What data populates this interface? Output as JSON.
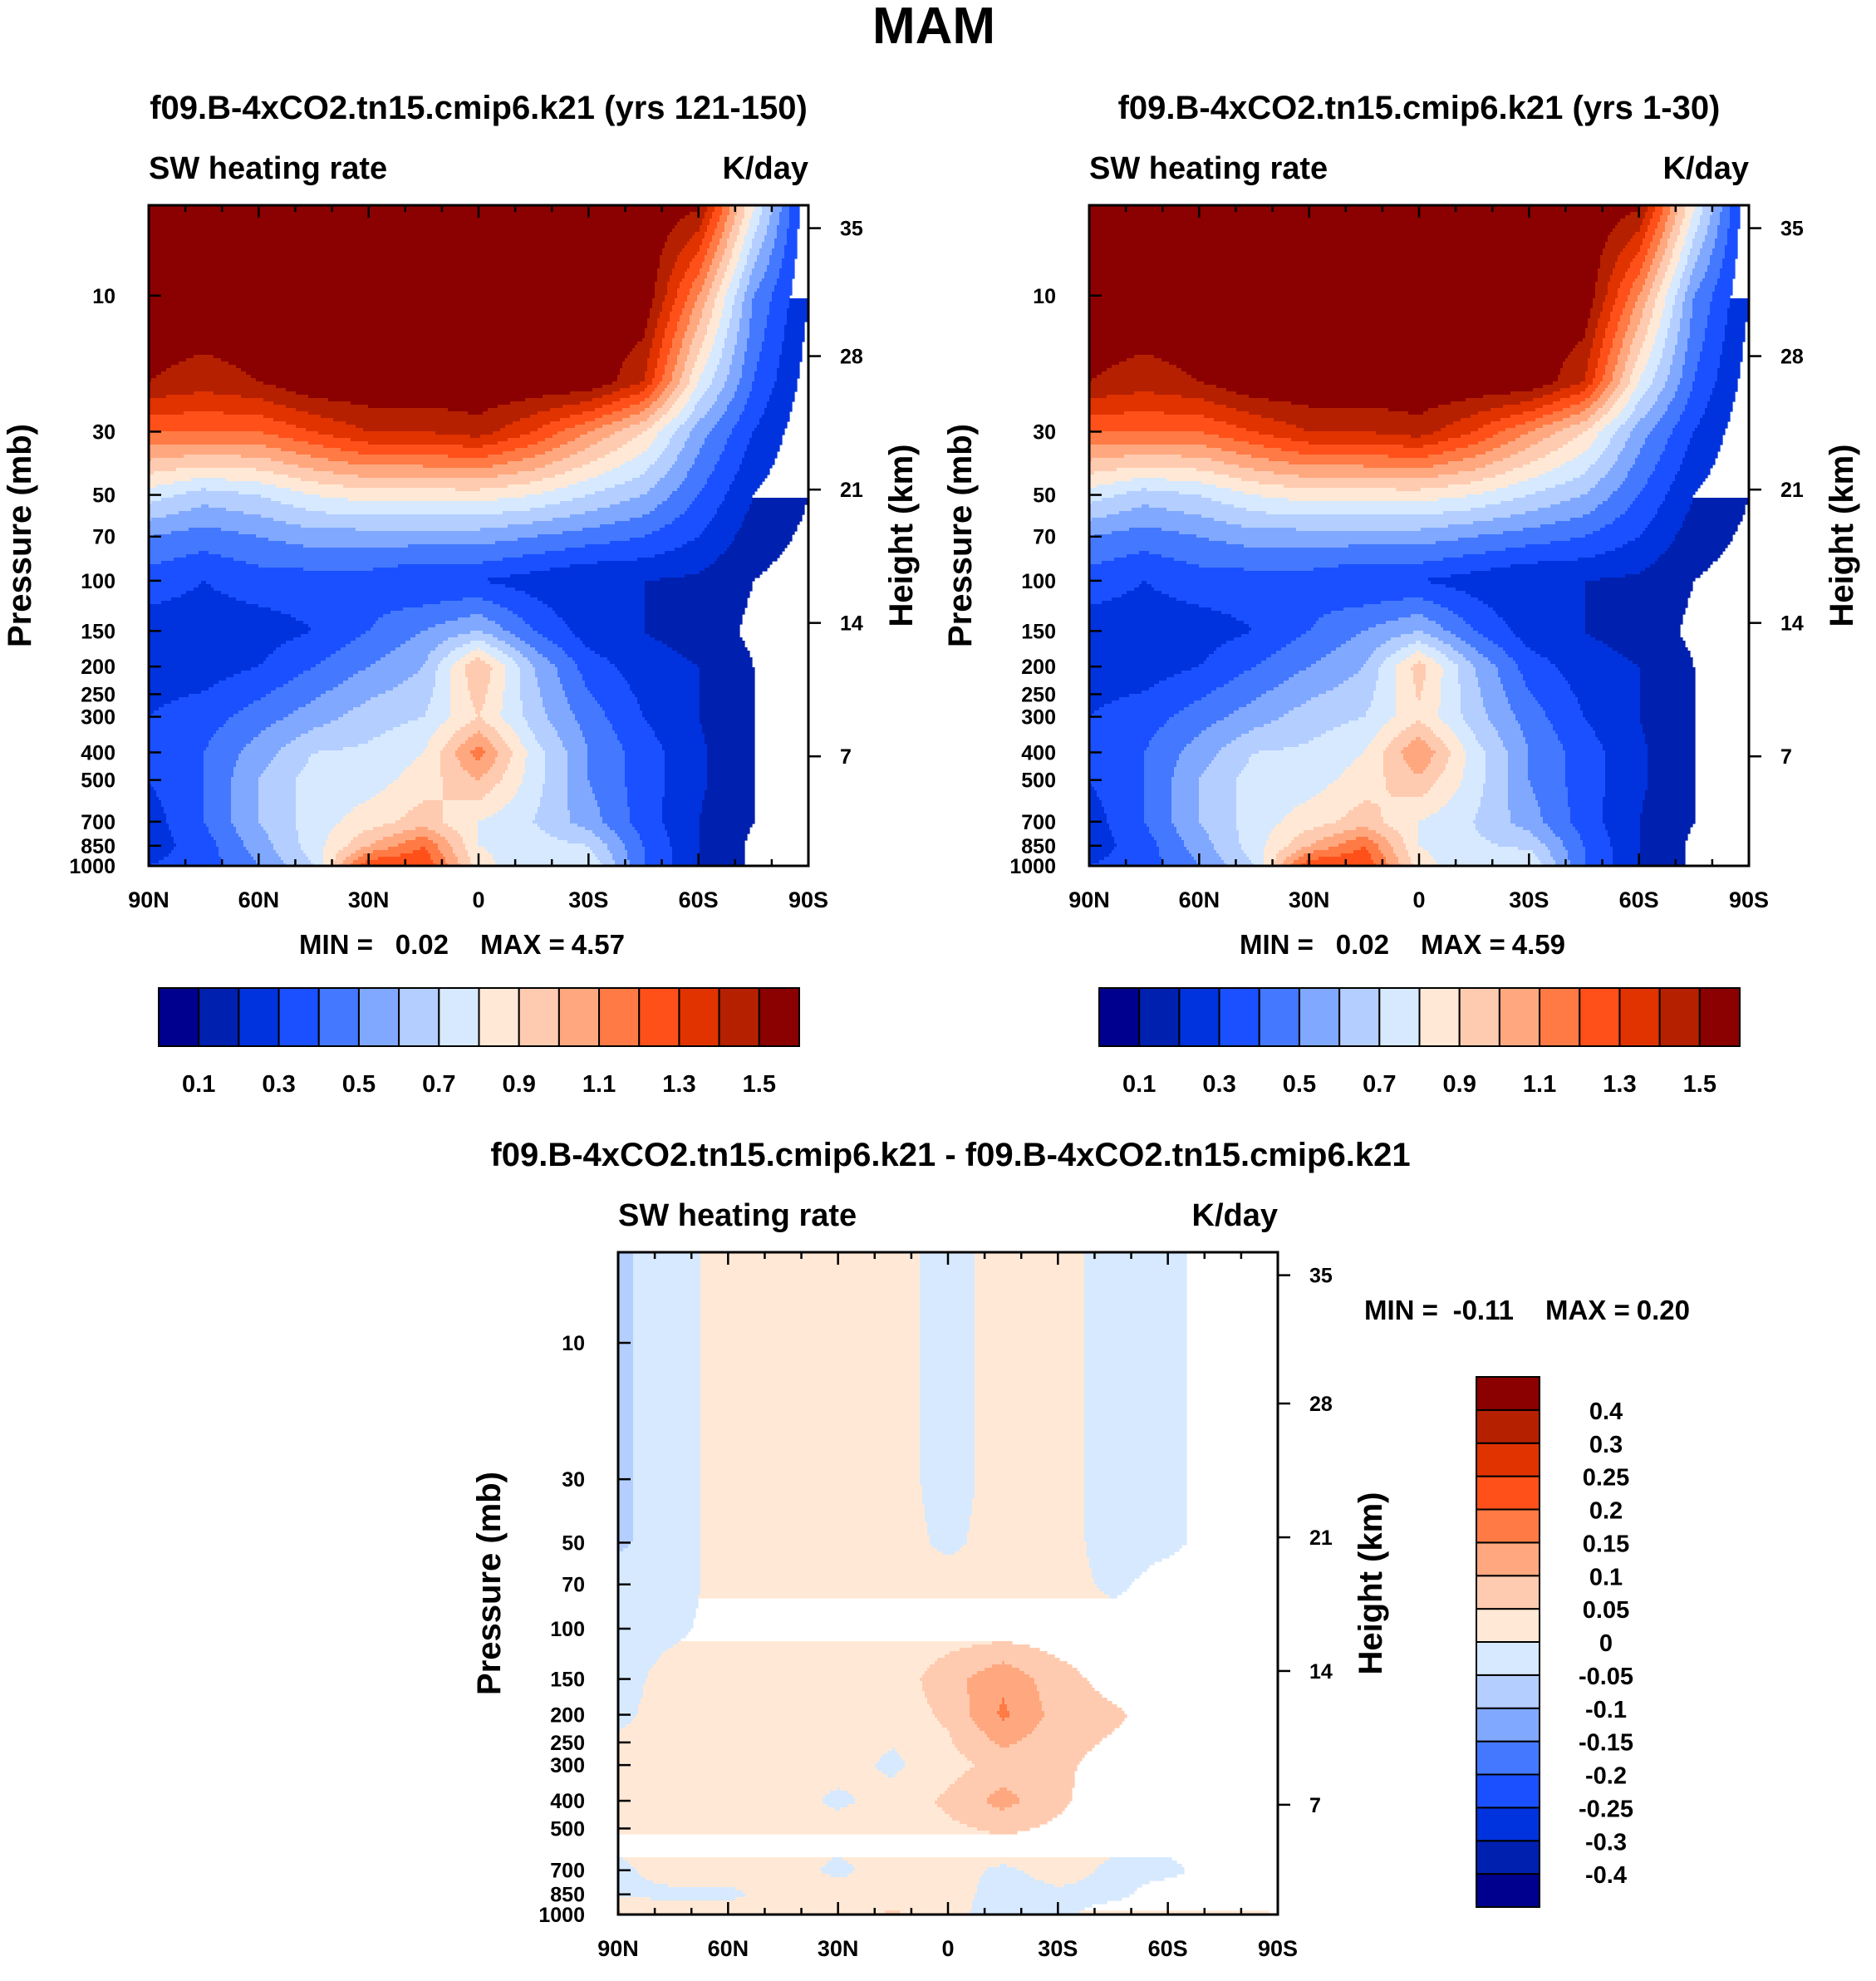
{
  "figure_title": "MAM",
  "colors_main": [
    "#00008f",
    "#0020b0",
    "#0033dd",
    "#1a50ff",
    "#4478ff",
    "#80a8ff",
    "#b4ceff",
    "#d6e9ff",
    "#ffe9d6",
    "#ffcbb0",
    "#ffa880",
    "#ff7a44",
    "#ff501a",
    "#e03300",
    "#b52000",
    "#8b0000"
  ],
  "chart_data": [
    {
      "type": "heatmap",
      "title": "f09.B-4xCO2.tn15.cmip6.k21 (yrs 121-150)",
      "left_label": "SW heating rate",
      "right_label": "K/day",
      "ylabel": "Pressure (mb)",
      "ylabel_right": "Height (km)",
      "stats": {
        "min_label": "MIN =",
        "min": "0.02",
        "max_label": "MAX =",
        "max": "4.57"
      },
      "ylim": [
        1000,
        4.82
      ],
      "xlim": [
        90,
        -90
      ],
      "x_ticks": [
        {
          "v": 90,
          "label": "90N"
        },
        {
          "v": 60,
          "label": "60N"
        },
        {
          "v": 30,
          "label": "30N"
        },
        {
          "v": 0,
          "label": "0"
        },
        {
          "v": -30,
          "label": "30S"
        },
        {
          "v": -60,
          "label": "60S"
        },
        {
          "v": -90,
          "label": "90S"
        }
      ],
      "y_ticks": [
        "10",
        "30",
        "50",
        "70",
        "100",
        "150",
        "200",
        "250",
        "300",
        "400",
        "500",
        "700",
        "850",
        "1000"
      ],
      "height_ticks": [
        {
          "km": "35",
          "p_mb": 5.8
        },
        {
          "km": "28",
          "p_mb": 16.3
        },
        {
          "km": "21",
          "p_mb": 47.9
        },
        {
          "km": "14",
          "p_mb": 140.6
        },
        {
          "km": "7",
          "p_mb": 413
        }
      ],
      "levels": [
        0.1,
        0.2,
        0.3,
        0.4,
        0.5,
        0.6,
        0.7,
        0.8,
        0.9,
        1.0,
        1.1,
        1.2,
        1.3,
        1.4,
        1.5
      ],
      "colorbar_labels": [
        {
          "level_index": 0,
          "label": "0.1"
        },
        {
          "level_index": 2,
          "label": "0.3"
        },
        {
          "level_index": 4,
          "label": "0.5"
        },
        {
          "level_index": 6,
          "label": "0.7"
        },
        {
          "level_index": 8,
          "label": "0.9"
        },
        {
          "level_index": 10,
          "label": "1.1"
        },
        {
          "level_index": 12,
          "label": "1.3"
        },
        {
          "level_index": 14,
          "label": "1.5"
        }
      ],
      "lat": [
        90,
        75,
        60,
        45,
        30,
        15,
        0,
        -15,
        -30,
        -45,
        -60,
        -75,
        -90
      ],
      "p": [
        5,
        10,
        20,
        30,
        50,
        70,
        100,
        150,
        200,
        300,
        400,
        500,
        700,
        850,
        1000
      ],
      "values": [
        [
          1.6,
          1.6,
          1.6,
          1.6,
          1.6,
          1.6,
          1.6,
          1.6,
          1.6,
          1.6,
          1.5,
          0.8,
          0.2
        ],
        [
          1.6,
          1.6,
          1.6,
          1.6,
          1.6,
          1.6,
          1.6,
          1.6,
          1.6,
          1.6,
          1.1,
          0.5,
          0.2
        ],
        [
          1.5,
          1.45,
          1.5,
          1.6,
          1.6,
          1.6,
          1.6,
          1.6,
          1.6,
          1.4,
          0.8,
          0.4,
          0.15
        ],
        [
          1.2,
          1.2,
          1.2,
          1.3,
          1.4,
          1.4,
          1.45,
          1.3,
          1.1,
          0.9,
          0.55,
          0.3,
          0.12
        ],
        [
          0.75,
          0.65,
          0.7,
          0.8,
          0.85,
          0.85,
          0.85,
          0.8,
          0.7,
          0.6,
          0.4,
          0.2,
          0.1
        ],
        [
          0.5,
          0.45,
          0.5,
          0.55,
          0.55,
          0.55,
          0.55,
          0.5,
          0.45,
          0.4,
          0.3,
          0.15,
          0.08
        ],
        [
          0.35,
          0.3,
          0.35,
          0.35,
          0.35,
          0.3,
          0.3,
          0.25,
          0.2,
          0.2,
          0.18,
          0.1,
          0.05
        ],
        [
          0.25,
          0.25,
          0.25,
          0.3,
          0.4,
          0.5,
          0.6,
          0.4,
          0.25,
          0.2,
          0.15,
          0.08,
          0.05
        ],
        [
          0.25,
          0.25,
          0.3,
          0.4,
          0.5,
          0.6,
          1.0,
          0.6,
          0.35,
          0.25,
          0.2,
          0.1,
          0.05
        ],
        [
          0.3,
          0.35,
          0.45,
          0.55,
          0.65,
          0.7,
          0.9,
          0.65,
          0.45,
          0.3,
          0.2,
          0.1,
          0.05
        ],
        [
          0.3,
          0.4,
          0.55,
          0.7,
          0.72,
          0.8,
          1.15,
          0.75,
          0.5,
          0.35,
          0.22,
          0.1,
          0.05
        ],
        [
          0.3,
          0.4,
          0.6,
          0.75,
          0.75,
          0.85,
          1.0,
          0.75,
          0.5,
          0.35,
          0.22,
          0.1,
          0.05
        ],
        [
          0.25,
          0.4,
          0.6,
          0.75,
          0.85,
          0.95,
          0.8,
          0.7,
          0.55,
          0.35,
          0.2,
          0.1,
          0.05
        ],
        [
          0.25,
          0.35,
          0.55,
          0.75,
          1.0,
          1.2,
          0.8,
          0.75,
          0.7,
          0.4,
          0.2,
          0.08,
          0.03
        ],
        [
          0.3,
          0.35,
          0.5,
          0.7,
          1.3,
          1.3,
          0.85,
          0.7,
          0.8,
          0.4,
          0.2,
          0.08,
          0.03
        ]
      ]
    },
    {
      "type": "heatmap",
      "title": "f09.B-4xCO2.tn15.cmip6.k21 (yrs 1-30)",
      "left_label": "SW heating rate",
      "right_label": "K/day",
      "ylabel": "Pressure (mb)",
      "ylabel_right": "Height (km)",
      "stats": {
        "min_label": "MIN =",
        "min": "0.02",
        "max_label": "MAX =",
        "max": "4.59"
      },
      "ylim": [
        1000,
        4.82
      ],
      "xlim": [
        90,
        -90
      ],
      "x_ticks": [
        {
          "v": 90,
          "label": "90N"
        },
        {
          "v": 60,
          "label": "60N"
        },
        {
          "v": 30,
          "label": "30N"
        },
        {
          "v": 0,
          "label": "0"
        },
        {
          "v": -30,
          "label": "30S"
        },
        {
          "v": -60,
          "label": "60S"
        },
        {
          "v": -90,
          "label": "90S"
        }
      ],
      "y_ticks": [
        "10",
        "30",
        "50",
        "70",
        "100",
        "150",
        "200",
        "250",
        "300",
        "400",
        "500",
        "700",
        "850",
        "1000"
      ],
      "height_ticks": [
        {
          "km": "35",
          "p_mb": 5.8
        },
        {
          "km": "28",
          "p_mb": 16.3
        },
        {
          "km": "21",
          "p_mb": 47.9
        },
        {
          "km": "14",
          "p_mb": 140.6
        },
        {
          "km": "7",
          "p_mb": 413
        }
      ],
      "levels": [
        0.1,
        0.2,
        0.3,
        0.4,
        0.5,
        0.6,
        0.7,
        0.8,
        0.9,
        1.0,
        1.1,
        1.2,
        1.3,
        1.4,
        1.5
      ],
      "colorbar_labels": [
        {
          "level_index": 0,
          "label": "0.1"
        },
        {
          "level_index": 2,
          "label": "0.3"
        },
        {
          "level_index": 4,
          "label": "0.5"
        },
        {
          "level_index": 6,
          "label": "0.7"
        },
        {
          "level_index": 8,
          "label": "0.9"
        },
        {
          "level_index": 10,
          "label": "1.1"
        },
        {
          "level_index": 12,
          "label": "1.3"
        },
        {
          "level_index": 14,
          "label": "1.5"
        }
      ],
      "lat": [
        90,
        75,
        60,
        45,
        30,
        15,
        0,
        -15,
        -30,
        -45,
        -60,
        -75,
        -90
      ],
      "p": [
        5,
        10,
        20,
        30,
        50,
        70,
        100,
        150,
        200,
        300,
        400,
        500,
        700,
        850,
        1000
      ],
      "values": [
        [
          1.6,
          1.6,
          1.6,
          1.6,
          1.6,
          1.6,
          1.6,
          1.6,
          1.6,
          1.6,
          1.5,
          0.8,
          0.2
        ],
        [
          1.6,
          1.6,
          1.6,
          1.6,
          1.6,
          1.6,
          1.6,
          1.6,
          1.6,
          1.6,
          1.1,
          0.5,
          0.2
        ],
        [
          1.5,
          1.45,
          1.5,
          1.6,
          1.6,
          1.6,
          1.6,
          1.6,
          1.6,
          1.4,
          0.8,
          0.4,
          0.15
        ],
        [
          1.2,
          1.2,
          1.2,
          1.3,
          1.4,
          1.4,
          1.45,
          1.3,
          1.1,
          0.9,
          0.55,
          0.3,
          0.12
        ],
        [
          0.75,
          0.65,
          0.7,
          0.8,
          0.85,
          0.85,
          0.85,
          0.8,
          0.7,
          0.6,
          0.4,
          0.2,
          0.1
        ],
        [
          0.5,
          0.45,
          0.5,
          0.55,
          0.55,
          0.55,
          0.55,
          0.5,
          0.45,
          0.4,
          0.3,
          0.15,
          0.08
        ],
        [
          0.35,
          0.3,
          0.35,
          0.35,
          0.35,
          0.3,
          0.3,
          0.25,
          0.2,
          0.2,
          0.18,
          0.1,
          0.05
        ],
        [
          0.25,
          0.25,
          0.25,
          0.3,
          0.4,
          0.5,
          0.6,
          0.4,
          0.25,
          0.2,
          0.15,
          0.08,
          0.05
        ],
        [
          0.25,
          0.25,
          0.3,
          0.4,
          0.5,
          0.6,
          0.95,
          0.6,
          0.35,
          0.25,
          0.2,
          0.1,
          0.05
        ],
        [
          0.3,
          0.35,
          0.45,
          0.55,
          0.65,
          0.7,
          0.88,
          0.65,
          0.45,
          0.3,
          0.2,
          0.1,
          0.05
        ],
        [
          0.3,
          0.4,
          0.55,
          0.7,
          0.72,
          0.8,
          1.1,
          0.75,
          0.5,
          0.35,
          0.22,
          0.1,
          0.05
        ],
        [
          0.3,
          0.4,
          0.6,
          0.75,
          0.75,
          0.85,
          0.98,
          0.75,
          0.5,
          0.35,
          0.22,
          0.1,
          0.05
        ],
        [
          0.25,
          0.4,
          0.6,
          0.75,
          0.85,
          0.95,
          0.8,
          0.7,
          0.55,
          0.35,
          0.2,
          0.1,
          0.05
        ],
        [
          0.25,
          0.35,
          0.55,
          0.75,
          1.0,
          1.2,
          0.8,
          0.72,
          0.68,
          0.4,
          0.2,
          0.08,
          0.03
        ],
        [
          0.3,
          0.35,
          0.5,
          0.7,
          1.3,
          1.3,
          0.85,
          0.7,
          0.8,
          0.4,
          0.2,
          0.08,
          0.03
        ]
      ]
    },
    {
      "type": "heatmap",
      "title": "f09.B-4xCO2.tn15.cmip6.k21 - f09.B-4xCO2.tn15.cmip6.k21",
      "left_label": "SW heating rate",
      "right_label": "K/day",
      "ylabel": "Pressure (mb)",
      "ylabel_right": "Height (km)",
      "stats": {
        "min_label": "MIN =",
        "min": "-0.11",
        "max_label": "MAX =",
        "max": "0.20"
      },
      "ylim": [
        1000,
        4.82
      ],
      "xlim": [
        90,
        -90
      ],
      "x_ticks": [
        {
          "v": 90,
          "label": "90N"
        },
        {
          "v": 60,
          "label": "60N"
        },
        {
          "v": 30,
          "label": "30N"
        },
        {
          "v": 0,
          "label": "0"
        },
        {
          "v": -30,
          "label": "30S"
        },
        {
          "v": -60,
          "label": "60S"
        },
        {
          "v": -90,
          "label": "90S"
        }
      ],
      "y_ticks": [
        "10",
        "30",
        "50",
        "70",
        "100",
        "150",
        "200",
        "250",
        "300",
        "400",
        "500",
        "700",
        "850",
        "1000"
      ],
      "height_ticks": [
        {
          "km": "35",
          "p_mb": 5.8
        },
        {
          "km": "28",
          "p_mb": 16.3
        },
        {
          "km": "21",
          "p_mb": 47.9
        },
        {
          "km": "14",
          "p_mb": 140.6
        },
        {
          "km": "7",
          "p_mb": 413
        }
      ],
      "levels": [
        -0.4,
        -0.3,
        -0.25,
        -0.2,
        -0.15,
        -0.1,
        -0.05,
        0,
        0.05,
        0.1,
        0.15,
        0.2,
        0.25,
        0.3,
        0.4
      ],
      "colorbar_labels": [
        {
          "level_index": 14,
          "label": "0.4"
        },
        {
          "level_index": 13,
          "label": "0.3"
        },
        {
          "level_index": 12,
          "label": "0.25"
        },
        {
          "level_index": 11,
          "label": "0.2"
        },
        {
          "level_index": 10,
          "label": "0.15"
        },
        {
          "level_index": 9,
          "label": "0.1"
        },
        {
          "level_index": 8,
          "label": "0.05"
        },
        {
          "level_index": 7,
          "label": "0"
        },
        {
          "level_index": 6,
          "label": "-0.05"
        },
        {
          "level_index": 5,
          "label": "-0.1"
        },
        {
          "level_index": 4,
          "label": "-0.15"
        },
        {
          "level_index": 3,
          "label": "-0.2"
        },
        {
          "level_index": 2,
          "label": "-0.25"
        },
        {
          "level_index": 1,
          "label": "-0.3"
        },
        {
          "level_index": 0,
          "label": "-0.4"
        }
      ],
      "lat": [
        90,
        75,
        60,
        45,
        30,
        15,
        0,
        -15,
        -30,
        -45,
        -60,
        -75,
        -90
      ],
      "p": [
        5,
        10,
        20,
        30,
        50,
        70,
        100,
        150,
        200,
        300,
        400,
        500,
        700,
        850,
        1000
      ],
      "values": [
        [
          -0.06,
          -0.02,
          0.02,
          0.02,
          0.02,
          0.02,
          -0.02,
          0.02,
          0.02,
          -0.02,
          -0.01,
          0.02,
          0.02
        ],
        [
          -0.06,
          -0.02,
          0.02,
          0.02,
          0.02,
          0.02,
          -0.02,
          0.02,
          0.02,
          -0.02,
          -0.01,
          0.02,
          0.02
        ],
        [
          -0.06,
          -0.02,
          0.02,
          0.02,
          0.02,
          0.02,
          -0.02,
          0.02,
          0.02,
          -0.02,
          -0.01,
          0.02,
          0.02
        ],
        [
          -0.06,
          -0.02,
          0.02,
          0.02,
          0.02,
          0.02,
          -0.02,
          0.02,
          0.02,
          -0.02,
          -0.01,
          0.02,
          0.02
        ],
        [
          -0.06,
          -0.02,
          0.02,
          0.02,
          0.02,
          0.02,
          -0.01,
          0.02,
          0.02,
          -0.02,
          -0.01,
          0.02,
          0.02
        ],
        [
          -0.02,
          -0.02,
          0.02,
          0.02,
          0.02,
          0.02,
          0.02,
          0.02,
          0.02,
          -0.01,
          0.02,
          0.02,
          0.02
        ],
        [
          -0.02,
          -0.01,
          0.02,
          0.02,
          0.02,
          0.02,
          0.02,
          0.02,
          0.02,
          0.02,
          0.02,
          0.02,
          0.02
        ],
        [
          -0.02,
          0.02,
          0.02,
          0.02,
          0.02,
          0.02,
          0.08,
          0.14,
          0.07,
          0.03,
          0.02,
          0.02,
          0.02
        ],
        [
          -0.01,
          0.02,
          0.02,
          0.02,
          0.02,
          0.02,
          0.06,
          0.16,
          0.08,
          0.06,
          0.02,
          0.02,
          0.02
        ],
        [
          0.02,
          0.02,
          0.02,
          0.02,
          0.02,
          -0.01,
          0.03,
          0.07,
          0.06,
          0.03,
          0.02,
          0.02,
          0.02
        ],
        [
          0.02,
          0.02,
          0.02,
          0.02,
          -0.01,
          0.02,
          0.06,
          0.12,
          0.06,
          0.02,
          0.02,
          0.02,
          0.02
        ],
        [
          0.02,
          0.02,
          0.02,
          0.02,
          0.02,
          0.02,
          0.04,
          0.06,
          0.04,
          0.02,
          0.02,
          0.02,
          0.02
        ],
        [
          -0.01,
          0.02,
          0.02,
          0.02,
          -0.01,
          0.02,
          0.02,
          -0.01,
          0.02,
          -0.01,
          -0.01,
          0.02,
          0.02
        ],
        [
          -0.01,
          -0.01,
          -0.01,
          0.02,
          0.02,
          0.02,
          0.02,
          -0.02,
          -0.01,
          -0.01,
          0.02,
          0.02,
          0.02
        ],
        [
          0.06,
          0.02,
          0.02,
          0.02,
          0.02,
          0.06,
          0.02,
          -0.03,
          -0.01,
          0.02,
          0.02,
          0.02,
          0.06
        ]
      ]
    }
  ]
}
